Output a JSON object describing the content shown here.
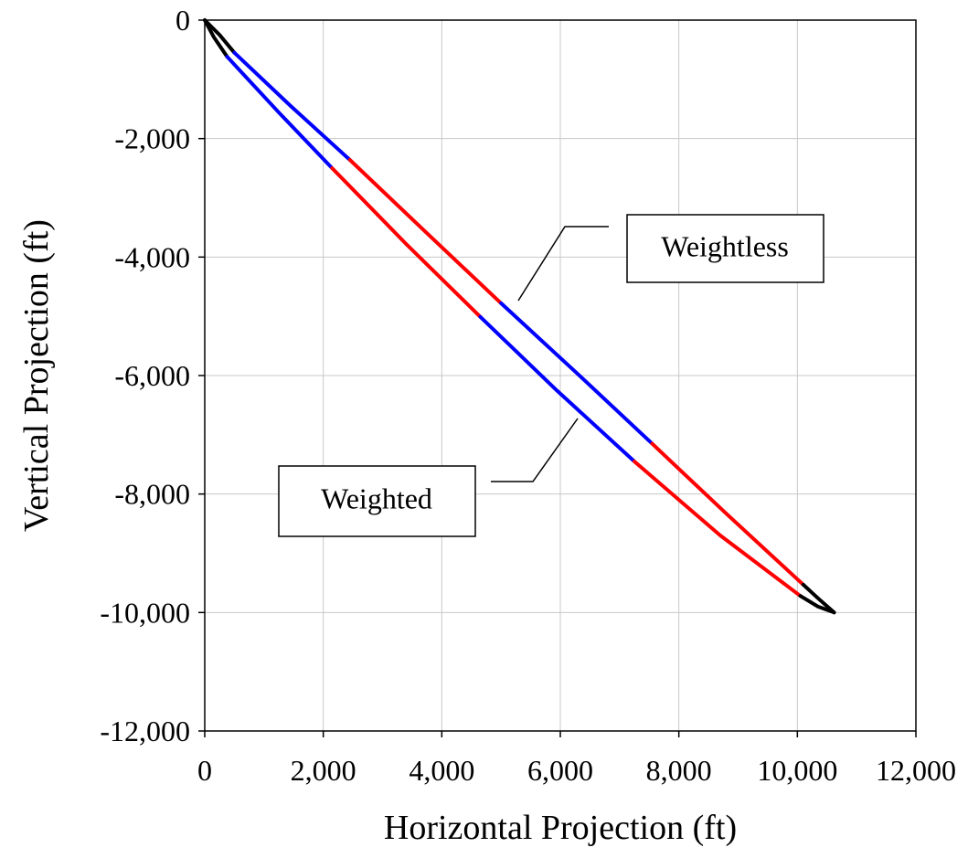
{
  "chart_data": {
    "type": "line",
    "xlabel": "Horizontal Projection (ft)",
    "ylabel": "Vertical Projection (ft)",
    "xlim": [
      0,
      12000
    ],
    "ylim": [
      -12000,
      0
    ],
    "xticks": [
      0,
      2000,
      4000,
      6000,
      8000,
      10000,
      12000
    ],
    "xtick_labels": [
      "0",
      "2,000",
      "4,000",
      "6,000",
      "8,000",
      "10,000",
      "12,000"
    ],
    "yticks": [
      0,
      -2000,
      -4000,
      -6000,
      -8000,
      -10000,
      -12000
    ],
    "ytick_labels": [
      "0",
      "-2,000",
      "-4,000",
      "-6,000",
      "-8,000",
      "-10,000",
      "-12,000"
    ],
    "grid": true,
    "segment_colors": [
      "#000000",
      "#0000ff",
      "#ff0000",
      "#0000ff",
      "#ff0000",
      "#000000"
    ],
    "series": [
      {
        "name": "Weightless",
        "segments": [
          {
            "color": "#000000",
            "points": [
              [
                0,
                0
              ],
              [
                250,
                -250
              ],
              [
                500,
                -550
              ]
            ]
          },
          {
            "color": "#0000ff",
            "points": [
              [
                500,
                -550
              ],
              [
                1450,
                -1450
              ],
              [
                2450,
                -2360
              ]
            ]
          },
          {
            "color": "#ff0000",
            "points": [
              [
                2450,
                -2360
              ],
              [
                3700,
                -3550
              ],
              [
                5000,
                -4780
              ]
            ]
          },
          {
            "color": "#0000ff",
            "points": [
              [
                5000,
                -4780
              ],
              [
                6300,
                -5980
              ],
              [
                7550,
                -7150
              ]
            ]
          },
          {
            "color": "#ff0000",
            "points": [
              [
                7550,
                -7150
              ],
              [
                8800,
                -8330
              ],
              [
                10100,
                -9530
              ]
            ]
          },
          {
            "color": "#000000",
            "points": [
              [
                10100,
                -9530
              ],
              [
                10350,
                -9760
              ],
              [
                10620,
                -10000
              ]
            ]
          }
        ]
      },
      {
        "name": "Weighted",
        "segments": [
          {
            "color": "#000000",
            "points": [
              [
                0,
                0
              ],
              [
                150,
                -280
              ],
              [
                380,
                -620
              ]
            ]
          },
          {
            "color": "#0000ff",
            "points": [
              [
                380,
                -620
              ],
              [
                1260,
                -1570
              ],
              [
                2150,
                -2500
              ]
            ]
          },
          {
            "color": "#ff0000",
            "points": [
              [
                2150,
                -2500
              ],
              [
                3400,
                -3780
              ],
              [
                4650,
                -5010
              ]
            ]
          },
          {
            "color": "#0000ff",
            "points": [
              [
                4650,
                -5010
              ],
              [
                5950,
                -6260
              ],
              [
                7250,
                -7450
              ]
            ]
          },
          {
            "color": "#ff0000",
            "points": [
              [
                7250,
                -7450
              ],
              [
                8700,
                -8700
              ],
              [
                10050,
                -9720
              ]
            ]
          },
          {
            "color": "#000000",
            "points": [
              [
                10050,
                -9720
              ],
              [
                10350,
                -9900
              ],
              [
                10620,
                -10000
              ]
            ]
          }
        ]
      }
    ],
    "annotations": [
      {
        "text": "Weightless",
        "target_series": "Weightless"
      },
      {
        "text": "Weighted",
        "target_series": "Weighted"
      }
    ]
  }
}
